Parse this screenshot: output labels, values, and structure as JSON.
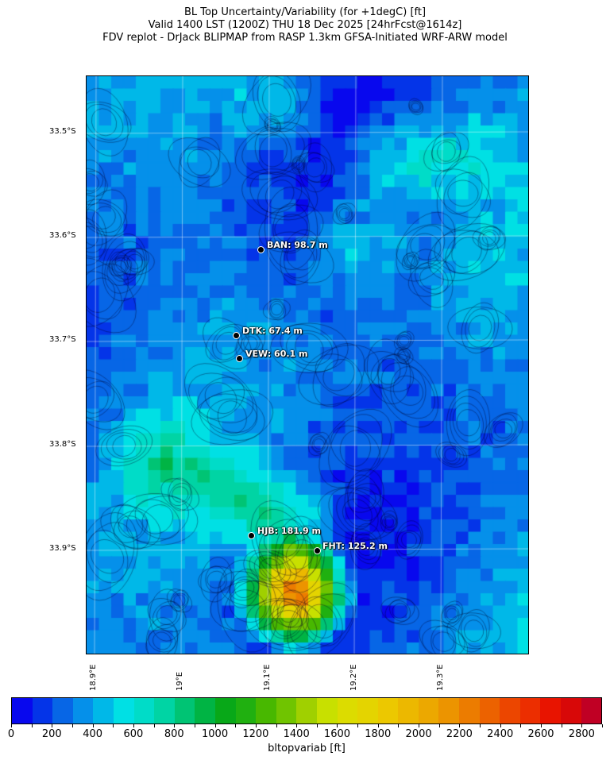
{
  "title": {
    "line1": "BL Top Uncertainty/Variability (for +1degC) [ft]",
    "line2": "Valid 1400 LST (1200Z) THU 18 Dec 2025 [24hrFcst@1614z]",
    "line3": "FDV replot - DrJack BLIPMAP from RASP 1.3km GFSA-Initiated WRF-ARW model"
  },
  "lat_labels": [
    "33.5°S",
    "33.6°S",
    "33.7°S",
    "33.8°S",
    "33.9°S"
  ],
  "lon_labels": [
    "18.9°E",
    "19°E",
    "19.1°E",
    "19.2°E",
    "19.3°E"
  ],
  "stations": [
    {
      "name": "BAN",
      "label": "BAN: 98.7 m"
    },
    {
      "name": "DTK",
      "label": "DTK: 67.4 m"
    },
    {
      "name": "VEW",
      "label": "VEW: 60.1 m"
    },
    {
      "name": "HJB",
      "label": "HJB: 181.9 m"
    },
    {
      "name": "FHT",
      "label": "FHT: 125.2 m"
    }
  ],
  "colorbar": {
    "label": "bltopvariab [ft]",
    "min": 0,
    "max": 2900,
    "step": 100,
    "tick_labels": [
      "0",
      "200",
      "400",
      "600",
      "800",
      "1000",
      "1200",
      "1400",
      "1600",
      "1800",
      "2000",
      "2200",
      "2400",
      "2600",
      "2800"
    ],
    "colors": [
      "#0808ee",
      "#0434e8",
      "#0766e6",
      "#0590ea",
      "#00b8e8",
      "#00e0e4",
      "#00dcc8",
      "#00d4a4",
      "#00c474",
      "#00b444",
      "#08a818",
      "#20b010",
      "#48b800",
      "#70c400",
      "#a0d000",
      "#c8e000",
      "#dcdc00",
      "#e4d400",
      "#ecc800",
      "#ecb800",
      "#eca800",
      "#ec9400",
      "#ec7c00",
      "#ec6200",
      "#ec4600",
      "#ec2e00",
      "#e81400",
      "#d80808",
      "#c00024"
    ]
  }
}
